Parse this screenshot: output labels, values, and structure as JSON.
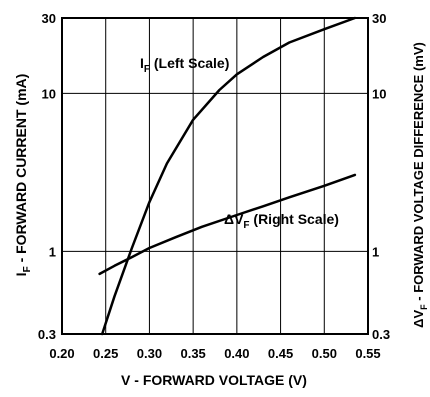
{
  "chart_data": {
    "type": "line",
    "xlabel": "V - FORWARD VOLTAGE (V)",
    "ylabel_left": "I F - FORWARD CURRENT (mA)",
    "ylabel_left_sub": "F",
    "ylabel_left_main": "I",
    "ylabel_left_rest": " - FORWARD CURRENT (mA)",
    "ylabel_right_main": "ΔV",
    "ylabel_right_sub": "F",
    "ylabel_right_rest": " - FORWARD VOLTAGE DIFFERENCE (mV)",
    "xlim": [
      0.2,
      0.55
    ],
    "ylim": [
      0.3,
      30
    ],
    "yscale": "log",
    "grid": true,
    "x_ticks": [
      "0.20",
      "0.25",
      "0.30",
      "0.35",
      "0.40",
      "0.45",
      "0.50",
      "0.55"
    ],
    "y_ticks_left": [
      "0.3",
      "1",
      "10",
      "30"
    ],
    "y_ticks_right": [
      "0.3",
      "1",
      "10",
      "30"
    ],
    "series": [
      {
        "label_main": "I",
        "label_sub": "F",
        "label_rest": " (Left Scale)",
        "x": [
          0.246,
          0.26,
          0.28,
          0.3,
          0.32,
          0.35,
          0.38,
          0.4,
          0.43,
          0.46,
          0.5,
          0.535
        ],
        "y": [
          0.3,
          0.52,
          1.05,
          2.05,
          3.6,
          6.8,
          10.5,
          13.2,
          17.0,
          21.0,
          25.5,
          30.0
        ]
      },
      {
        "label_main": "ΔV",
        "label_sub": "F",
        "label_rest": " (Right Scale)",
        "x": [
          0.243,
          0.26,
          0.28,
          0.3,
          0.33,
          0.36,
          0.4,
          0.43,
          0.46,
          0.5,
          0.535
        ],
        "y": [
          0.72,
          0.81,
          0.92,
          1.05,
          1.23,
          1.43,
          1.7,
          1.93,
          2.2,
          2.6,
          3.05
        ]
      }
    ]
  }
}
